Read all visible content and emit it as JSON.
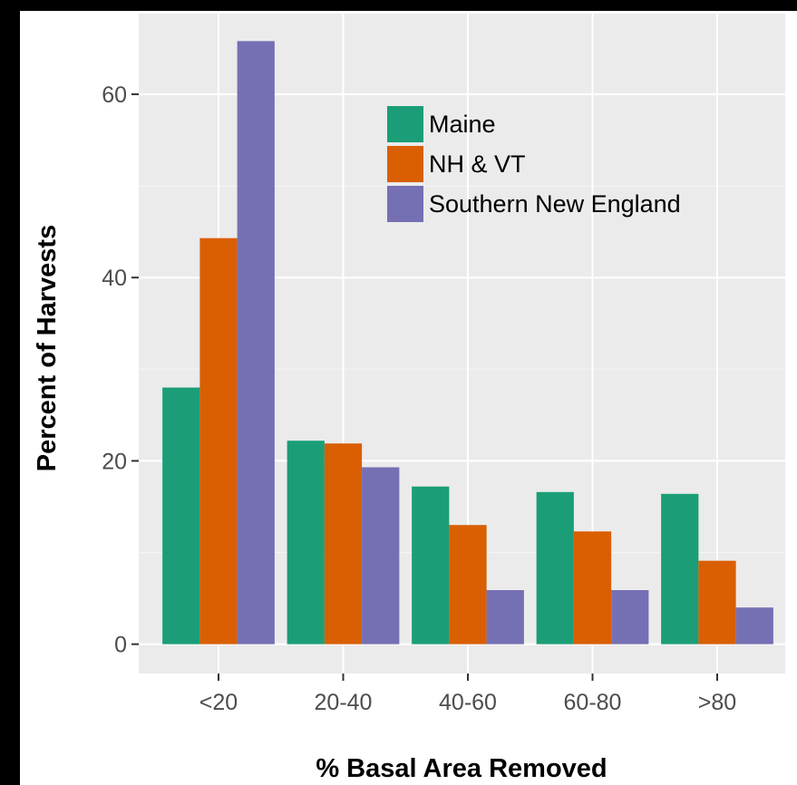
{
  "chart_data": {
    "type": "bar",
    "title": "",
    "xlabel": "% Basal Area Removed",
    "ylabel": "Percent of Harvests",
    "categories": [
      "<20",
      "20-40",
      "40-60",
      "60-80",
      ">80"
    ],
    "series": [
      {
        "name": "Maine",
        "color": "#1b9e77",
        "values": [
          28.0,
          22.2,
          17.2,
          16.6,
          16.4
        ]
      },
      {
        "name": "NH & VT",
        "color": "#d95f02",
        "values": [
          44.3,
          21.9,
          13.0,
          12.3,
          9.1
        ]
      },
      {
        "name": "Southern New England",
        "color": "#7570b3",
        "values": [
          65.8,
          19.3,
          5.9,
          5.9,
          4.0
        ]
      }
    ],
    "yticks": [
      0,
      20,
      40,
      60
    ],
    "ylim": [
      -3.2,
      68.8
    ],
    "grid": true,
    "legend_position": "top-right"
  }
}
